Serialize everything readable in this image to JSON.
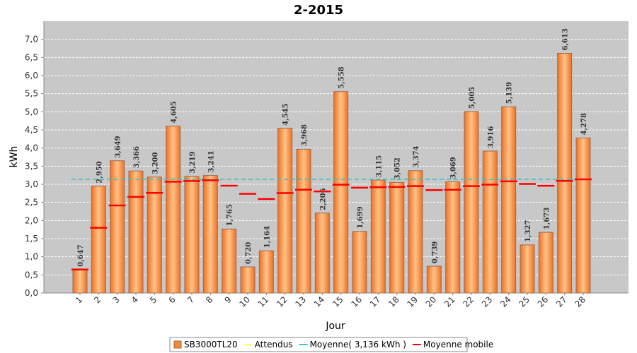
{
  "chart_data": {
    "type": "bar",
    "title": "2-2015",
    "x_label": "Jour",
    "y_label": "kWh",
    "categories": [
      "1",
      "2",
      "3",
      "4",
      "5",
      "6",
      "7",
      "8",
      "9",
      "10",
      "11",
      "12",
      "13",
      "14",
      "15",
      "16",
      "17",
      "18",
      "19",
      "20",
      "21",
      "22",
      "23",
      "24",
      "25",
      "26",
      "27",
      "28"
    ],
    "series": [
      {
        "name": "SB3000TL20",
        "color": "#f28a30",
        "values": [
          0.647,
          2.95,
          3.649,
          3.366,
          3.2,
          4.605,
          3.219,
          3.241,
          1.765,
          0.72,
          1.164,
          4.545,
          3.968,
          2.206,
          5.558,
          1.699,
          3.115,
          3.052,
          3.374,
          0.739,
          3.069,
          5.005,
          3.916,
          5.139,
          1.327,
          1.673,
          6.613,
          4.278
        ],
        "value_labels": [
          "0,647",
          "2,950",
          "3,649",
          "3,366",
          "3,200",
          "4,605",
          "3,219",
          "3,241",
          "1,765",
          "0,720",
          "1,164",
          "4,545",
          "3,968",
          "2,206",
          "5,558",
          "1,699",
          "3,115",
          "3,052",
          "3,374",
          "0,739",
          "3,069",
          "5,005",
          "3,916",
          "5,139",
          "1,327",
          "1,673",
          "6,613",
          "4,278"
        ]
      },
      {
        "name": "Attendus",
        "color": "#ffff66"
      },
      {
        "name": "Moyenne( 3,136 kWh )",
        "color": "#40c0c0",
        "value": 3.136
      },
      {
        "name": "Moyenne mobile",
        "color": "#ff0000",
        "values": [
          0.647,
          1.799,
          2.415,
          2.653,
          2.762,
          3.07,
          3.091,
          3.11,
          2.96,
          2.736,
          2.593,
          2.756,
          2.849,
          2.803,
          2.987,
          2.906,
          2.919,
          2.926,
          2.95,
          2.839,
          2.85,
          2.948,
          2.99,
          3.08,
          3.01,
          2.958,
          3.093,
          3.136
        ]
      }
    ],
    "ylim": [
      0,
      7.5
    ],
    "yticks": [
      {
        "value": 0,
        "label": "0,0"
      },
      {
        "value": 0.5,
        "label": "0,5"
      },
      {
        "value": 1,
        "label": "1,0"
      },
      {
        "value": 1.5,
        "label": "1,5"
      },
      {
        "value": 2,
        "label": "2,0"
      },
      {
        "value": 2.5,
        "label": "2,5"
      },
      {
        "value": 3,
        "label": "3,0"
      },
      {
        "value": 3.5,
        "label": "3,5"
      },
      {
        "value": 4,
        "label": "4,0"
      },
      {
        "value": 4.5,
        "label": "4,5"
      },
      {
        "value": 5,
        "label": "5,0"
      },
      {
        "value": 5.5,
        "label": "5,5"
      },
      {
        "value": 6,
        "label": "6,0"
      },
      {
        "value": 6.5,
        "label": "6,5"
      },
      {
        "value": 7,
        "label": "7,0"
      }
    ],
    "grid": true
  }
}
